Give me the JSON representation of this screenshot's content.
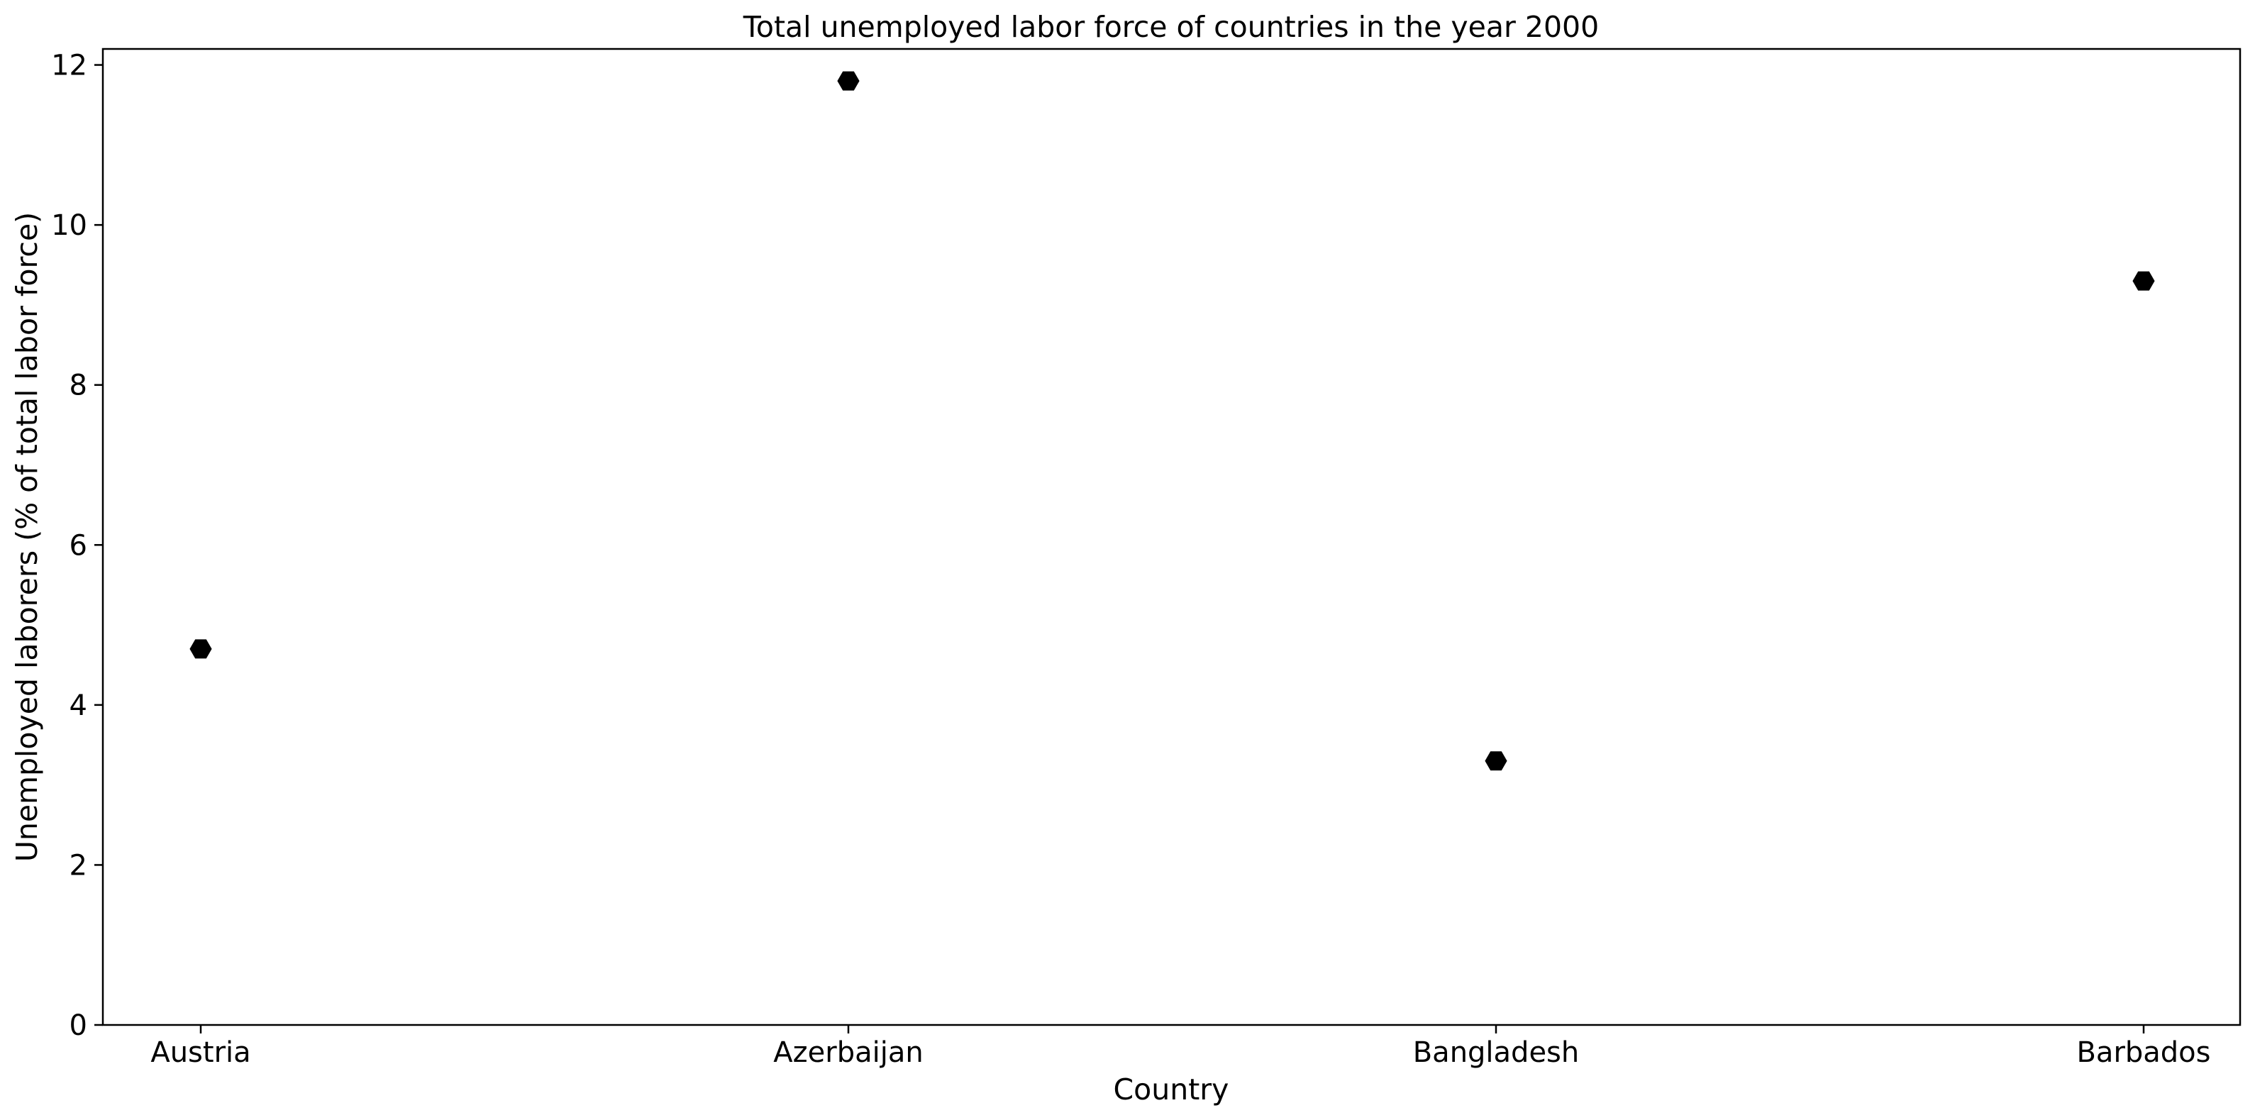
{
  "chart_data": {
    "type": "scatter",
    "title": "Total unemployed labor force of countries in the year 2000",
    "xlabel": "Country",
    "ylabel": "Unemployed laborers (% of total labor force)",
    "categories": [
      "Austria",
      "Azerbaijan",
      "Bangladesh",
      "Barbados"
    ],
    "values": [
      4.7,
      11.8,
      3.3,
      9.3
    ],
    "yticks": [
      0,
      2,
      4,
      6,
      8,
      10,
      12
    ],
    "ylim": [
      0,
      12.2
    ],
    "grid": false,
    "legend": false,
    "marker": "hexagon",
    "marker_color": "#000000"
  }
}
